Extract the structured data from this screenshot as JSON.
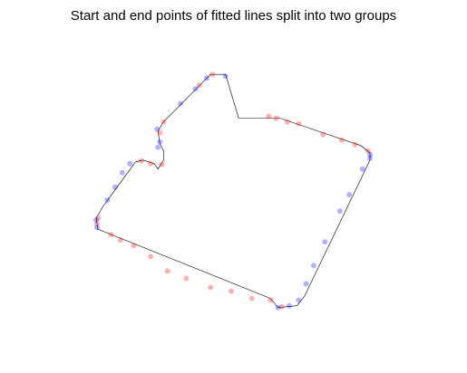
{
  "chart_data": {
    "type": "scatter",
    "title": "Start and end points of fitted lines split into two groups",
    "xlabel": "",
    "ylabel": "",
    "axes_visible": false,
    "grid": false,
    "legend": "none",
    "outline": {
      "color": "#000000",
      "points": [
        [
          4.0,
          10.4
        ],
        [
          6.2,
          10.4
        ],
        [
          10.5,
          8.9
        ],
        [
          11.0,
          8.5
        ],
        [
          11.0,
          8.1
        ],
        [
          7.5,
          0.6
        ],
        [
          7.1,
          0.1
        ],
        [
          6.1,
          0.0
        ],
        [
          5.7,
          0.5
        ],
        [
          -3.5,
          4.3
        ],
        [
          -3.6,
          4.9
        ],
        [
          -3.2,
          5.6
        ],
        [
          -1.5,
          8.0
        ],
        [
          -1.1,
          8.1
        ],
        [
          -0.5,
          7.9
        ],
        [
          -0.3,
          7.6
        ],
        [
          0.0,
          8.1
        ],
        [
          0.0,
          8.6
        ],
        [
          -0.2,
          9.0
        ],
        [
          -0.3,
          9.7
        ],
        [
          0.0,
          10.2
        ],
        [
          2.3,
          12.6
        ],
        [
          2.5,
          12.8
        ],
        [
          3.3,
          12.8
        ],
        [
          4.0,
          10.4
        ]
      ]
    },
    "series": [
      {
        "color": "#ff0000",
        "points": [
          [
            -3.55,
            4.6
          ],
          [
            -3.5,
            4.9
          ],
          [
            -0.1,
            7.85
          ],
          [
            -0.7,
            7.9
          ],
          [
            -1.2,
            8.05
          ],
          [
            -0.2,
            9.6
          ],
          [
            0.0,
            10.2
          ],
          [
            1.9,
            12.2
          ],
          [
            2.6,
            12.8
          ],
          [
            5.6,
            10.5
          ],
          [
            6.0,
            10.4
          ],
          [
            6.6,
            10.2
          ],
          [
            7.2,
            10.1
          ],
          [
            8.5,
            9.5
          ],
          [
            9.5,
            9.2
          ],
          [
            10.2,
            8.95
          ],
          [
            10.9,
            8.6
          ],
          [
            5.7,
            0.4
          ],
          [
            6.3,
            0.05
          ],
          [
            0.2,
            2.0
          ],
          [
            1.2,
            1.6
          ],
          [
            2.5,
            1.1
          ],
          [
            -2.8,
            4.0
          ],
          [
            -2.3,
            3.7
          ],
          [
            -1.6,
            3.4
          ],
          [
            -0.7,
            2.8
          ],
          [
            3.6,
            0.9
          ],
          [
            4.7,
            0.5
          ]
        ]
      },
      {
        "color": "#0000ff",
        "points": [
          [
            -3.6,
            4.8
          ],
          [
            -3.55,
            4.4
          ],
          [
            -2.6,
            6.6
          ],
          [
            -3.0,
            5.9
          ],
          [
            -2.2,
            7.4
          ],
          [
            -1.8,
            7.9
          ],
          [
            -0.3,
            8.8
          ],
          [
            -0.2,
            9.1
          ],
          [
            -0.35,
            9.8
          ],
          [
            0.9,
            11.2
          ],
          [
            1.7,
            12.0
          ],
          [
            2.3,
            12.6
          ],
          [
            3.3,
            12.7
          ],
          [
            11.0,
            8.4
          ],
          [
            11.0,
            8.2
          ],
          [
            10.6,
            7.6
          ],
          [
            9.4,
            5.3
          ],
          [
            8.6,
            3.6
          ],
          [
            8.0,
            2.3
          ],
          [
            7.2,
            0.4
          ],
          [
            6.7,
            0.1
          ],
          [
            6.1,
            0.0
          ],
          [
            9.9,
            6.2
          ],
          [
            7.6,
            1.3
          ]
        ]
      }
    ],
    "xlim": [
      -6.5,
      14
    ],
    "ylim": [
      -3,
      15
    ]
  }
}
